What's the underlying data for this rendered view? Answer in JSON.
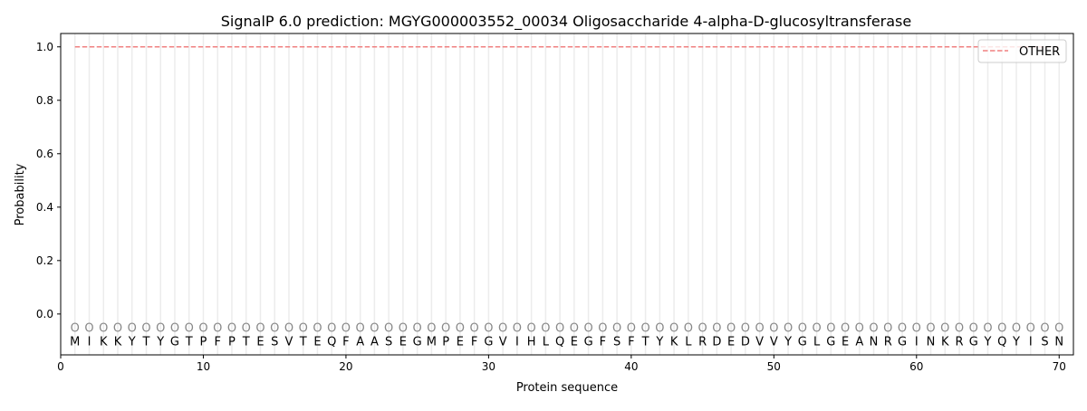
{
  "chart_data": {
    "type": "line",
    "title": "SignalP 6.0 prediction: MGYG000003552_00034 Oligosaccharide 4-alpha-D-glucosyltransferase",
    "xlabel": "Protein sequence",
    "ylabel": "Probability",
    "xlim": [
      0,
      71
    ],
    "ylim": [
      -0.153,
      1.05
    ],
    "xticks": [
      0,
      10,
      20,
      30,
      40,
      50,
      60,
      70
    ],
    "yticks": [
      0.0,
      0.2,
      0.4,
      0.6,
      0.8,
      1.0
    ],
    "ytick_labels": [
      "0.0",
      "0.2",
      "0.4",
      "0.6",
      "0.8",
      "1.0"
    ],
    "grid": "vertical lines at each residue",
    "legend_position": "top-right",
    "sequence": [
      "M",
      "I",
      "K",
      "K",
      "Y",
      "T",
      "Y",
      "G",
      "T",
      "P",
      "F",
      "P",
      "T",
      "E",
      "S",
      "V",
      "T",
      "E",
      "Q",
      "F",
      "A",
      "A",
      "S",
      "E",
      "G",
      "M",
      "P",
      "E",
      "F",
      "G",
      "V",
      "I",
      "H",
      "L",
      "Q",
      "E",
      "G",
      "F",
      "S",
      "F",
      "T",
      "Y",
      "K",
      "L",
      "R",
      "D",
      "E",
      "D",
      "V",
      "V",
      "Y",
      "G",
      "L",
      "G",
      "E",
      "A",
      "N",
      "R",
      "G",
      "I",
      "N",
      "K",
      "R",
      "G",
      "Y",
      "Q",
      "Y",
      "I",
      "S",
      "N"
    ],
    "region_label": "O",
    "region_marker_y": -0.05,
    "series": [
      {
        "name": "OTHER",
        "x_start": 1,
        "x_end": 70,
        "value": 1.0,
        "color": "#f08080",
        "style": "dashed"
      }
    ]
  }
}
